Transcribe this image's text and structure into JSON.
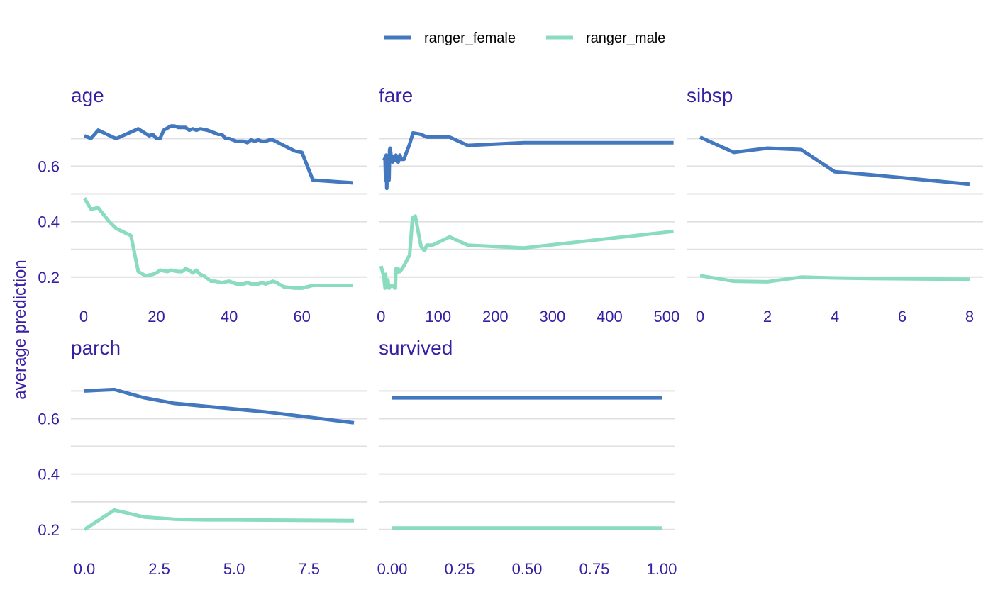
{
  "chart_data": {
    "type": "line",
    "ylabel": "average prediction",
    "legend_position": "top",
    "legend": [
      {
        "name": "ranger_female",
        "color": "#4378bf"
      },
      {
        "name": "ranger_male",
        "color": "#8bdcbe"
      }
    ],
    "ylim": [
      0.115,
      0.77
    ],
    "yticks": [
      0.2,
      0.4,
      0.6
    ],
    "ytick_labels": [
      "0.2",
      "0.4",
      "0.6"
    ],
    "grid": true,
    "panels": [
      {
        "title": "age",
        "xlim": [
          -3.5,
          78
        ],
        "xticks": [
          0,
          20,
          40,
          60
        ],
        "xtick_labels": [
          "0",
          "20",
          "40",
          "60"
        ],
        "series": [
          {
            "name": "ranger_female",
            "x": [
              0.2,
              2,
              4,
              8,
              9,
              15,
              18,
              19,
              20,
              21,
              22,
              24,
              25,
              26,
              28,
              29,
              30,
              31,
              32,
              34,
              35,
              36,
              37,
              38,
              39,
              40,
              41,
              42,
              43,
              44,
              45,
              46,
              47,
              48,
              49,
              50,
              51,
              52,
              55,
              58,
              60,
              63,
              74
            ],
            "values": [
              0.71,
              0.7,
              0.73,
              0.705,
              0.7,
              0.735,
              0.71,
              0.715,
              0.7,
              0.7,
              0.73,
              0.745,
              0.745,
              0.74,
              0.74,
              0.73,
              0.735,
              0.73,
              0.735,
              0.73,
              0.725,
              0.72,
              0.715,
              0.715,
              0.7,
              0.7,
              0.695,
              0.69,
              0.69,
              0.69,
              0.685,
              0.695,
              0.69,
              0.695,
              0.69,
              0.69,
              0.695,
              0.695,
              0.675,
              0.655,
              0.65,
              0.55,
              0.54
            ]
          },
          {
            "name": "ranger_male",
            "x": [
              0.2,
              2,
              4,
              7,
              9,
              13,
              15,
              17,
              19,
              20,
              21,
              23,
              24,
              26,
              27,
              28,
              29,
              30,
              31,
              32,
              33,
              34,
              35,
              36,
              38,
              40,
              41,
              42,
              43,
              44,
              45,
              46,
              47,
              48,
              49,
              50,
              51,
              52,
              53,
              55,
              58,
              60,
              63,
              74
            ],
            "values": [
              0.485,
              0.445,
              0.45,
              0.4,
              0.375,
              0.35,
              0.22,
              0.205,
              0.21,
              0.215,
              0.225,
              0.22,
              0.225,
              0.22,
              0.22,
              0.23,
              0.225,
              0.215,
              0.225,
              0.21,
              0.205,
              0.195,
              0.185,
              0.185,
              0.18,
              0.185,
              0.18,
              0.175,
              0.175,
              0.175,
              0.18,
              0.175,
              0.175,
              0.175,
              0.18,
              0.175,
              0.18,
              0.185,
              0.18,
              0.165,
              0.16,
              0.16,
              0.17,
              0.17
            ]
          }
        ]
      },
      {
        "title": "fare",
        "xlim": [
          -4,
          515
        ],
        "xticks": [
          0,
          100,
          200,
          300,
          400,
          500
        ],
        "xtick_labels": [
          "0",
          "100",
          "200",
          "300",
          "400",
          "500"
        ],
        "series": [
          {
            "name": "ranger_female",
            "x": [
              5,
              7,
              8,
              9,
              10,
              11,
              12,
              13,
              14,
              15,
              16,
              18,
              20,
              22,
              25,
              26,
              28,
              30,
              33,
              35,
              40,
              50,
              56,
              70,
              80,
              100,
              120,
              152,
              250,
              512
            ],
            "values": [
              0.62,
              0.63,
              0.55,
              0.64,
              0.52,
              0.63,
              0.55,
              0.63,
              0.55,
              0.66,
              0.665,
              0.63,
              0.615,
              0.635,
              0.62,
              0.64,
              0.625,
              0.615,
              0.64,
              0.625,
              0.625,
              0.68,
              0.72,
              0.715,
              0.705,
              0.705,
              0.705,
              0.675,
              0.685,
              0.685
            ]
          },
          {
            "name": "ranger_male",
            "x": [
              0,
              5,
              7,
              8,
              9,
              10,
              11,
              12,
              13,
              14,
              15,
              20,
              25,
              26,
              28,
              30,
              33,
              35,
              40,
              50,
              55,
              56,
              60,
              70,
              76,
              80,
              90,
              100,
              120,
              152,
              250,
              512
            ],
            "values": [
              0.24,
              0.2,
              0.16,
              0.21,
              0.17,
              0.18,
              0.175,
              0.19,
              0.17,
              0.16,
              0.165,
              0.17,
              0.16,
              0.23,
              0.215,
              0.23,
              0.22,
              0.225,
              0.24,
              0.28,
              0.41,
              0.415,
              0.42,
              0.31,
              0.295,
              0.315,
              0.315,
              0.325,
              0.345,
              0.315,
              0.305,
              0.365
            ]
          }
        ]
      },
      {
        "title": "sibsp",
        "xlim": [
          -0.4,
          8.4
        ],
        "xticks": [
          0,
          2,
          4,
          6,
          8
        ],
        "xtick_labels": [
          "0",
          "2",
          "4",
          "6",
          "8"
        ],
        "series": [
          {
            "name": "ranger_female",
            "x": [
              0,
              1,
              2,
              3,
              4,
              5,
              8
            ],
            "values": [
              0.705,
              0.65,
              0.665,
              0.66,
              0.58,
              0.57,
              0.535
            ]
          },
          {
            "name": "ranger_male",
            "x": [
              0,
              1,
              2,
              3,
              4,
              5,
              8
            ],
            "values": [
              0.205,
              0.185,
              0.183,
              0.2,
              0.197,
              0.195,
              0.192
            ]
          }
        ]
      },
      {
        "title": "parch",
        "xlim": [
          -0.45,
          9.45
        ],
        "xticks": [
          0,
          2.5,
          5,
          7.5
        ],
        "xtick_labels": [
          "0.0",
          "2.5",
          "5.0",
          "7.5"
        ],
        "series": [
          {
            "name": "ranger_female",
            "x": [
              0,
              1,
              2,
              3,
              4,
              5,
              6,
              9
            ],
            "values": [
              0.7,
              0.705,
              0.675,
              0.655,
              0.645,
              0.635,
              0.625,
              0.585
            ]
          },
          {
            "name": "ranger_male",
            "x": [
              0,
              1,
              2,
              3,
              4,
              5,
              6,
              9
            ],
            "values": [
              0.2,
              0.27,
              0.245,
              0.237,
              0.235,
              0.235,
              0.234,
              0.232
            ]
          }
        ]
      },
      {
        "title": "survived",
        "xlim": [
          -0.05,
          1.05
        ],
        "xticks": [
          0,
          0.25,
          0.5,
          0.75,
          1
        ],
        "xtick_labels": [
          "0.00",
          "0.25",
          "0.50",
          "0.75",
          "1.00"
        ],
        "series": [
          {
            "name": "ranger_female",
            "x": [
              0,
              1
            ],
            "values": [
              0.675,
              0.675
            ]
          },
          {
            "name": "ranger_male",
            "x": [
              0,
              1
            ],
            "values": [
              0.205,
              0.205
            ]
          }
        ]
      }
    ]
  }
}
